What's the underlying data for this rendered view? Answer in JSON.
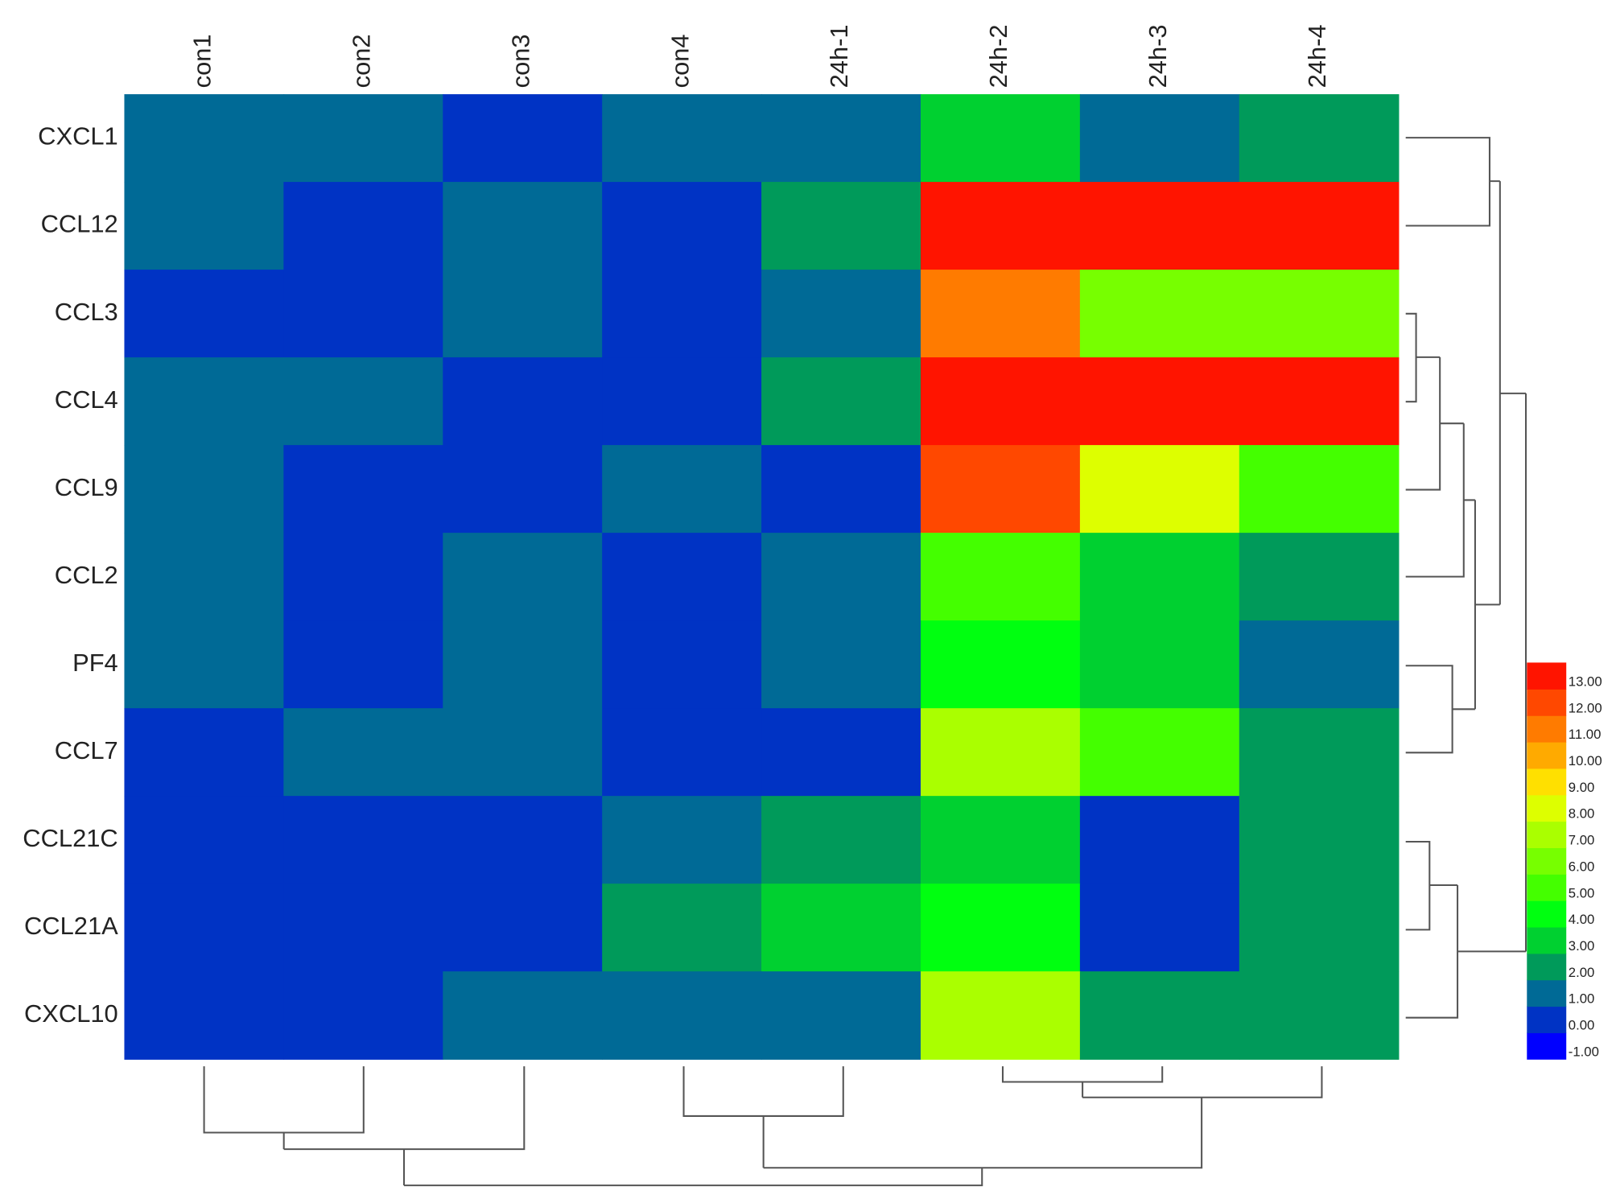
{
  "chart_data": {
    "type": "heatmap",
    "columns": [
      "con1",
      "con2",
      "con3",
      "con4",
      "24h-1",
      "24h-2",
      "24h-3",
      "24h-4"
    ],
    "rows": [
      "CXCL1",
      "CCL12",
      "CCL3",
      "CCL4",
      "CCL9",
      "CCL2",
      "PF4",
      "CCL7",
      "CCL21C",
      "CCL21A",
      "CXCL10"
    ],
    "values": [
      [
        1.5,
        1.5,
        0.5,
        1.5,
        1.5,
        3.5,
        1.5,
        2.5
      ],
      [
        1.5,
        0.5,
        1.5,
        0.5,
        2.5,
        13.5,
        13.5,
        13.5
      ],
      [
        0.5,
        0.5,
        1.5,
        0.5,
        1.5,
        11.5,
        6.5,
        6.5
      ],
      [
        1.5,
        1.5,
        0.5,
        0.5,
        2.5,
        13.5,
        13.5,
        13.5
      ],
      [
        1.5,
        0.5,
        0.5,
        1.5,
        0.5,
        12.5,
        8.5,
        5.5
      ],
      [
        1.5,
        0.5,
        1.5,
        0.5,
        1.5,
        5.5,
        3.5,
        2.5
      ],
      [
        1.5,
        0.5,
        1.5,
        0.5,
        1.5,
        4.5,
        3.5,
        1.5
      ],
      [
        0.5,
        1.5,
        1.5,
        0.5,
        0.5,
        7.5,
        5.5,
        2.5
      ],
      [
        0.5,
        0.5,
        0.5,
        1.5,
        2.5,
        3.5,
        0.5,
        2.5
      ],
      [
        0.5,
        0.5,
        0.5,
        2.5,
        3.5,
        4.5,
        0.5,
        2.5
      ],
      [
        0.5,
        0.5,
        1.5,
        1.5,
        1.5,
        7.5,
        2.5,
        2.5
      ]
    ],
    "colorbar_ticks": [
      {
        "value": -1,
        "label": "-1.00"
      },
      {
        "value": 0,
        "label": "0.00"
      },
      {
        "value": 1,
        "label": "1.00"
      },
      {
        "value": 2,
        "label": "2.00"
      },
      {
        "value": 3,
        "label": "3.00"
      },
      {
        "value": 4,
        "label": "4.00"
      },
      {
        "value": 5,
        "label": "5.00"
      },
      {
        "value": 6,
        "label": "6.00"
      },
      {
        "value": 7,
        "label": "7.00"
      },
      {
        "value": 8,
        "label": "8.00"
      },
      {
        "value": 9,
        "label": "9.00"
      },
      {
        "value": 10,
        "label": "10.00"
      },
      {
        "value": 11,
        "label": "11.00"
      },
      {
        "value": 12,
        "label": "12.00"
      },
      {
        "value": 13,
        "label": "13.00"
      }
    ],
    "colors": [
      "#0000ff",
      "#0033c4",
      "#006a96",
      "#009a5a",
      "#00d030",
      "#00ff10",
      "#44ff00",
      "#77ff00",
      "#aaff00",
      "#ddff00",
      "#ffe000",
      "#ffaa00",
      "#ff7b00",
      "#ff4800",
      "#ff1400"
    ]
  }
}
